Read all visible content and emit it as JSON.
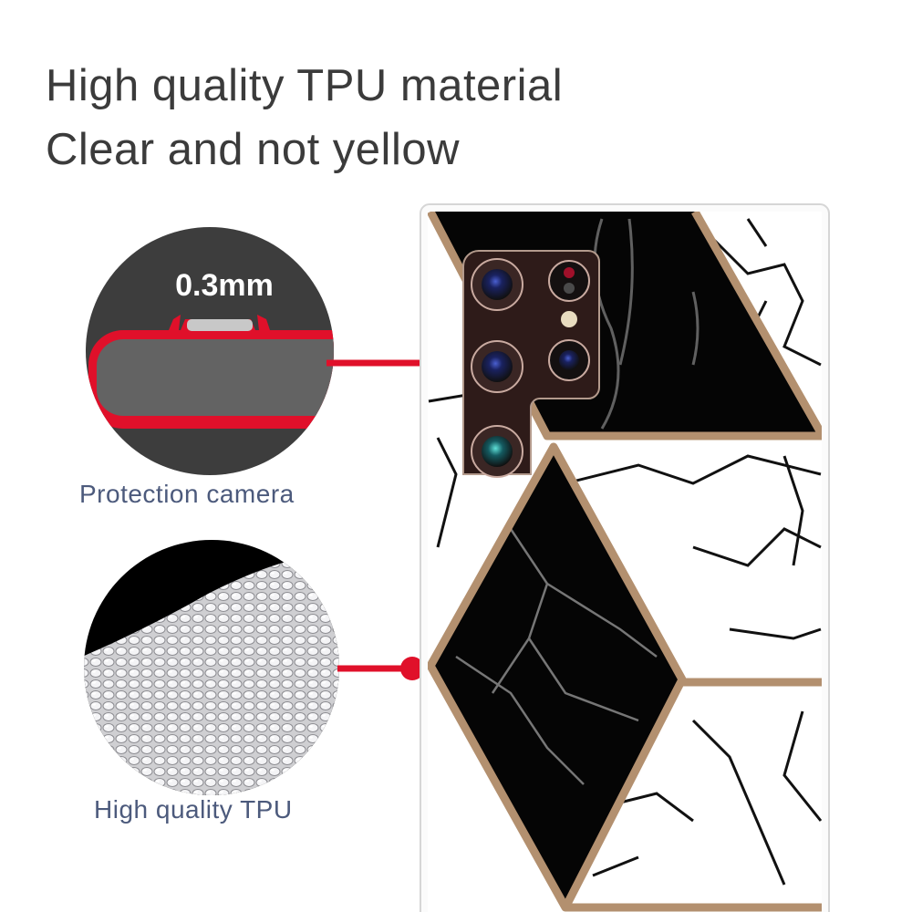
{
  "headline": {
    "line1": "High quality TPU material",
    "line2": "Clear and not yellow"
  },
  "callouts": [
    {
      "label": "Protection camera",
      "detail": "0.3mm",
      "icon": "camera-lip-cross-section-icon"
    },
    {
      "label": "High quality TPU",
      "icon": "tpu-granules-icon"
    }
  ],
  "colors": {
    "accent_red": "#e0102a",
    "gold_trim": "#b3906f",
    "text": "#3b3b3b",
    "caption": "#4c5a7c"
  },
  "product": {
    "pattern": "black-and-white marble with gold geometric trim"
  }
}
